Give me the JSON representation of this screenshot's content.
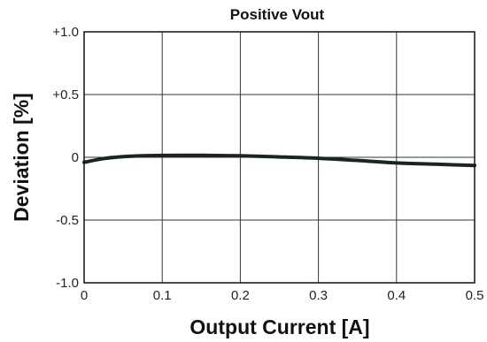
{
  "chart_data": {
    "type": "line",
    "title": "Positive Vout",
    "xlabel": "Output Current [A]",
    "ylabel": "Deviation [%]",
    "xlim": [
      0,
      0.5
    ],
    "ylim": [
      -1.0,
      1.0
    ],
    "x_ticks": [
      0,
      0.1,
      0.2,
      0.3,
      0.4,
      0.5
    ],
    "x_tick_labels": [
      "0",
      "0.1",
      "0.2",
      "0.3",
      "0.4",
      "0.5"
    ],
    "y_ticks": [
      1.0,
      0.5,
      0,
      -0.5,
      -1.0
    ],
    "y_tick_labels": [
      "+1.0",
      "+0.5",
      "0",
      "-0.5",
      "-1.0"
    ],
    "grid": true,
    "legend": "none",
    "series": [
      {
        "color": "#1a2420",
        "x": [
          0,
          0.025,
          0.05,
          0.075,
          0.1,
          0.15,
          0.2,
          0.25,
          0.3,
          0.35,
          0.4,
          0.45,
          0.5
        ],
        "y": [
          -0.04,
          -0.01,
          0.005,
          0.012,
          0.015,
          0.016,
          0.012,
          0.003,
          -0.008,
          -0.025,
          -0.045,
          -0.055,
          -0.065
        ]
      }
    ]
  }
}
